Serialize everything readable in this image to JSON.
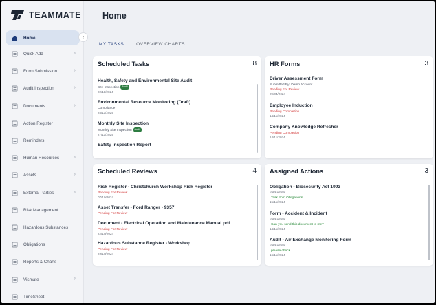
{
  "brand": {
    "name": "TEAMMATE"
  },
  "page": {
    "title": "Home"
  },
  "tabs": [
    {
      "label": "MY TASKS"
    },
    {
      "label": "OVERVIEW CHARTS"
    }
  ],
  "sidebar": {
    "items": [
      {
        "label": "Home",
        "icon": "home-icon"
      },
      {
        "label": "Quick Add",
        "icon": "quick-add-icon"
      },
      {
        "label": "Form Submission",
        "icon": "form-icon"
      },
      {
        "label": "Audit Inspection",
        "icon": "audit-icon"
      },
      {
        "label": "Documents",
        "icon": "documents-icon"
      },
      {
        "label": "Action Register",
        "icon": "action-register-icon"
      },
      {
        "label": "Reminders",
        "icon": "reminders-icon"
      },
      {
        "label": "Human Resources",
        "icon": "human-resources-icon"
      },
      {
        "label": "Assets",
        "icon": "assets-icon"
      },
      {
        "label": "External Parties",
        "icon": "external-parties-icon"
      },
      {
        "label": "Risk Management",
        "icon": "risk-management-icon"
      },
      {
        "label": "Hazardous Substances",
        "icon": "hazardous-icon"
      },
      {
        "label": "Obligations",
        "icon": "obligations-icon"
      },
      {
        "label": "Reports & Charts",
        "icon": "reports-icon"
      },
      {
        "label": "Vismate",
        "icon": "vismate-icon"
      },
      {
        "label": "TimeSheet",
        "icon": "timesheet-icon"
      }
    ]
  },
  "scheduled_tasks": {
    "title": "Scheduled Tasks",
    "count": "8",
    "items": [
      {
        "title": "Health, Safety and Environmental Site Audit",
        "sub": "Site Inspection",
        "badge": "Audit",
        "date": "22/11/2024"
      },
      {
        "title": "Environmental Resource Monitoring (Draft)",
        "sub": "Compliance",
        "badge": "",
        "date": "25/11/2024"
      },
      {
        "title": "Monthly Site Inspection",
        "sub": "Monthly Site Inspection",
        "badge": "Audit",
        "date": "27/11/2024"
      },
      {
        "title": "Safety Inspection Report",
        "sub": "",
        "badge": "",
        "date": ""
      }
    ]
  },
  "hr_forms": {
    "title": "HR Forms",
    "count": "3",
    "items": [
      {
        "title": "Driver Assessment Form",
        "sub": "Submitted By: Demo Account",
        "status": "Pending For Review",
        "date": "29/04/2024"
      },
      {
        "title": "Employee Induction",
        "sub": "",
        "status": "Pending Completion",
        "date": "14/11/2024"
      },
      {
        "title": "Company Knowledge Refresher",
        "sub": "",
        "status": "Pending Completion",
        "date": "14/11/2024"
      }
    ]
  },
  "scheduled_reviews": {
    "title": "Scheduled Reviews",
    "count": "4",
    "items": [
      {
        "title": "Risk Register - Christchurch Workshop Risk Register",
        "status": "Pending For Review",
        "date": "07/10/2024"
      },
      {
        "title": "Asset Transfer - Ford Ranger - 9357",
        "status": "Pending For Review",
        "date": ""
      },
      {
        "title": "Document - Electrical Operation and Maintenance Manual.pdf",
        "status": "Pending For Review",
        "date": "22/10/2024"
      },
      {
        "title": "Hazardous Substance Register - Workshop",
        "status": "Pending For Review",
        "date": "29/10/2024"
      }
    ]
  },
  "assigned_actions": {
    "title": "Assigned Actions",
    "count": "3",
    "items": [
      {
        "title": "Obligation - Biosecurity Act 1993",
        "label": "Instruction:",
        "note": "Task from Obligations",
        "date": "15/11/2024"
      },
      {
        "title": "Form - Accident & Incident",
        "label": "Instruction:",
        "note": "Can you send this document to me?",
        "date": "14/11/2024"
      },
      {
        "title": "Audit - Air Exchange Monitoring Form",
        "label": "Instruction:",
        "note": "please check",
        "date": "16/11/2024"
      }
    ]
  }
}
